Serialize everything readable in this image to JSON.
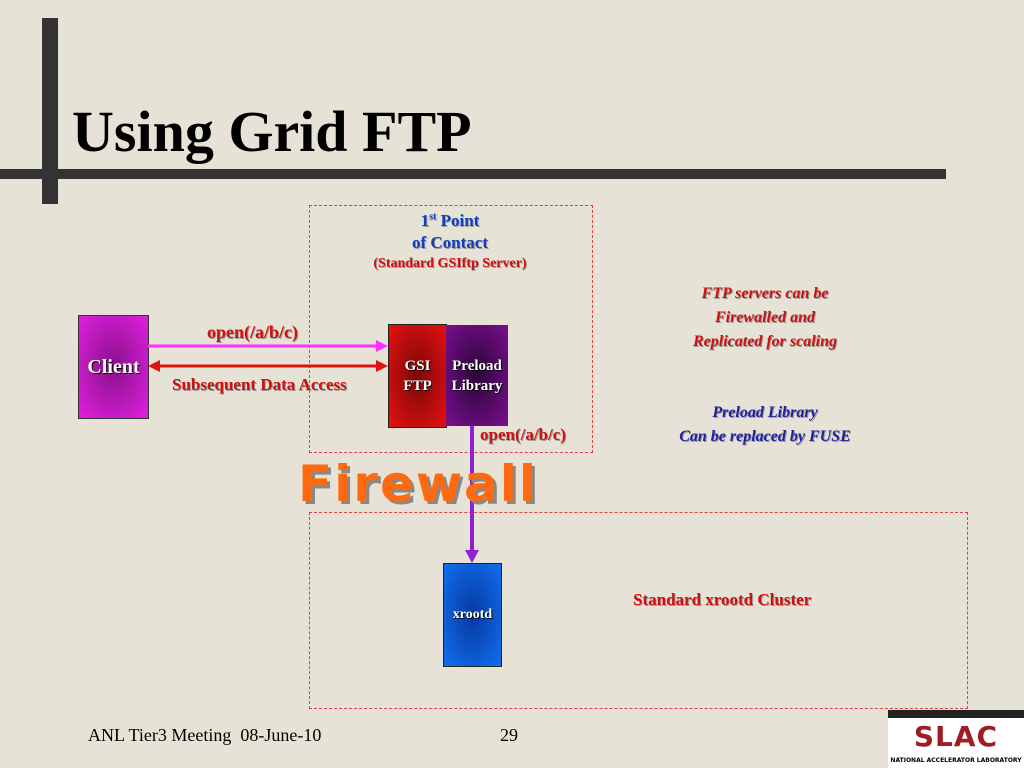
{
  "title": "Using Grid FTP",
  "contact": {
    "line1_prefix": "1",
    "line1_sup": "st",
    "line1_suffix": " Point",
    "line2": "of Contact",
    "line3": "(Standard GSIftp Server)"
  },
  "client": "Client",
  "open_label_top": "open(/a/b/c)",
  "data_access": "Subsequent Data Access",
  "gsi": {
    "line1": "GSI",
    "line2": "FTP"
  },
  "preload": {
    "line1": "Preload",
    "line2": "Library"
  },
  "open_label_bottom": "open(/a/b/c)",
  "firewall": "Firewall",
  "xrootd": "xrootd",
  "cluster": "Standard xrootd Cluster",
  "note1": [
    "FTP servers can be",
    "Firewalled and",
    "Replicated for scaling"
  ],
  "note2": [
    "Preload Library",
    "Can be replaced by FUSE"
  ],
  "footer": {
    "meeting": "ANL Tier3 Meeting  08-June-10",
    "page": "29"
  },
  "logo": {
    "text": "SLAC",
    "sub": "NATIONAL ACCELERATOR LABORATORY"
  },
  "colors": {
    "client": "#e020e0",
    "gsi": "#e01010",
    "preload": "#6a0a80",
    "xrootd": "#1060e0",
    "arrow_open": "#ff30ff",
    "arrow_data": "#e01010",
    "arrow_down": "#9020d0"
  }
}
